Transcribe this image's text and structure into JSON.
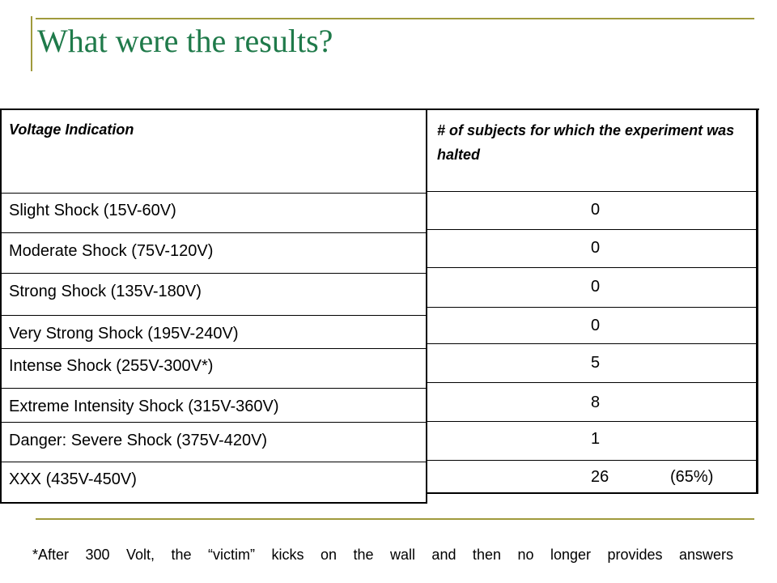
{
  "title": "What were the results?",
  "left_table": {
    "header": "Voltage Indication",
    "rows": [
      "Slight Shock (15V-60V)",
      "Moderate Shock (75V-120V)",
      "Strong Shock (135V-180V)",
      "Very Strong Shock (195V-240V)",
      "Intense Shock (255V-300V*)",
      "Extreme Intensity Shock (315V-360V)",
      "Danger: Severe Shock (375V-420V)",
      "XXX (435V-450V)"
    ]
  },
  "right_table": {
    "header": "# of subjects for which the experiment was halted",
    "values": [
      "0",
      "0",
      "0",
      "0",
      "5",
      "8",
      "1",
      "26"
    ],
    "last_percent": "(65%)"
  },
  "footnote": "*After 300 Volt, the “victim” kicks on the wall and then no longer provides answers",
  "colors": {
    "title": "#1f7a4a",
    "rule": "#a09a3c"
  }
}
